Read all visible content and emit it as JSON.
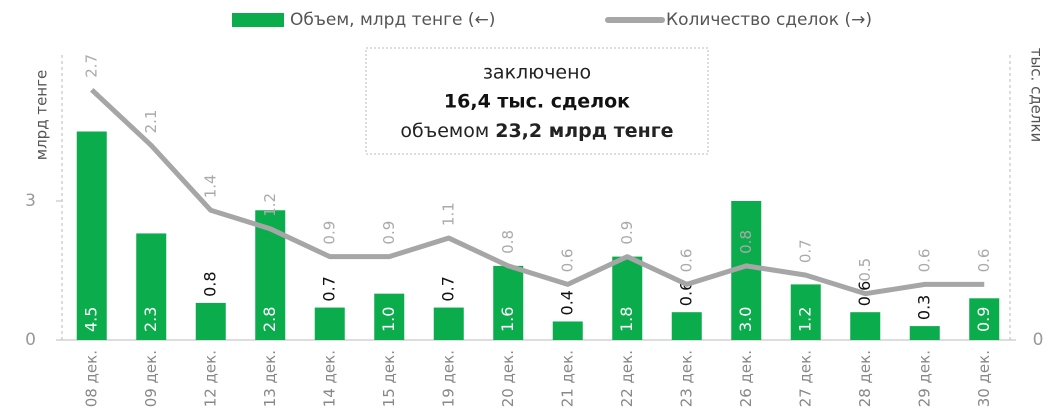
{
  "chart_data": {
    "type": "bar_line",
    "categories": [
      "08 дек.",
      "09 дек.",
      "12 дек.",
      "13 дек.",
      "14 дек.",
      "15 дек.",
      "19 дек.",
      "20 дек.",
      "21 дек.",
      "22 дек.",
      "23 дек.",
      "26 дек.",
      "27 дек.",
      "28 дек.",
      "29 дек.",
      "30 дек."
    ],
    "series": [
      {
        "name": "Объем, млрд тенге (←)",
        "color": "#0aac4c",
        "type": "bar",
        "values": [
          4.5,
          2.3,
          0.8,
          2.8,
          0.7,
          1.0,
          0.7,
          1.6,
          0.4,
          1.8,
          0.6,
          3.0,
          1.2,
          0.6,
          0.3,
          0.9
        ],
        "value_labels": [
          "4.5",
          "2.3",
          "0.8",
          "2.8",
          "0.7",
          "1.0",
          "0.7",
          "1.6",
          "0.4",
          "1.8",
          "0.6",
          "3.0",
          "1.2",
          "0.6",
          "0.3",
          "0.9"
        ]
      },
      {
        "name": "Количество сделок (→)",
        "color": "#a6a6a6",
        "type": "line",
        "axis": "y2",
        "values": [
          2.7,
          2.1,
          1.4,
          1.2,
          0.9,
          0.9,
          1.1,
          0.8,
          0.6,
          0.9,
          0.6,
          0.8,
          0.7,
          0.5,
          0.6,
          0.6
        ]
      }
    ],
    "ylabel": "млрд тенге",
    "y2label": "тыс. сделки",
    "ylim": [
      0,
      6
    ],
    "yticks": [
      0,
      3
    ],
    "y2lim": [
      0,
      3
    ],
    "y2ticks": [
      0
    ],
    "annotation": {
      "line1": "заключено",
      "line2": "16,4 тыс. сделок",
      "line3a": "объемом",
      "line3b": "23,2 млрд тенге"
    }
  }
}
